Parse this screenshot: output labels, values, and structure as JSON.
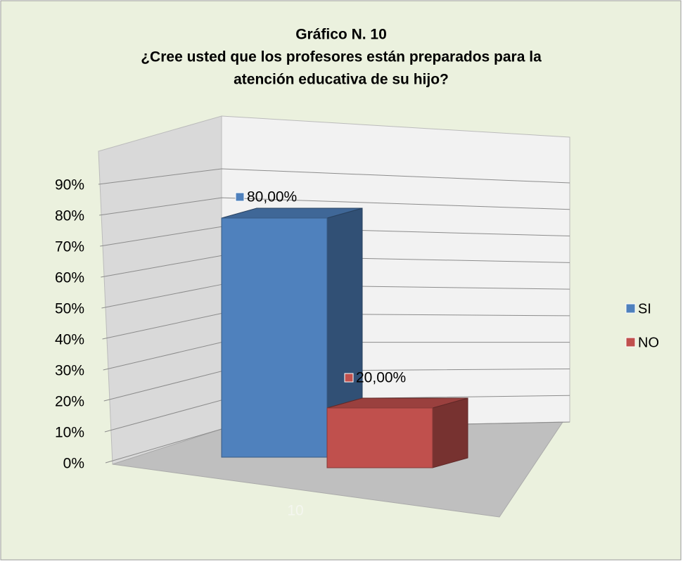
{
  "chart_data": {
    "type": "bar3d",
    "title": [
      "Gráfico N. 10",
      "¿Cree usted que los profesores están preparados para la",
      "atención educativa de su hijo?"
    ],
    "categories": [
      "10"
    ],
    "series": [
      {
        "name": "SI",
        "color": "#4f81bd",
        "values": [
          80
        ],
        "value_labels": [
          "80,00%"
        ]
      },
      {
        "name": "NO",
        "color": "#c0504d",
        "values": [
          20
        ],
        "value_labels": [
          "20,00%"
        ]
      }
    ],
    "ylim": [
      0,
      90
    ],
    "yticks": [
      {
        "value": 0,
        "label": "0%"
      },
      {
        "value": 10,
        "label": "10%"
      },
      {
        "value": 20,
        "label": "20%"
      },
      {
        "value": 30,
        "label": "30%"
      },
      {
        "value": 40,
        "label": "40%"
      },
      {
        "value": 50,
        "label": "50%"
      },
      {
        "value": 60,
        "label": "60%"
      },
      {
        "value": 70,
        "label": "70%"
      },
      {
        "value": 80,
        "label": "80%"
      },
      {
        "value": 90,
        "label": "90%"
      }
    ],
    "grid": true,
    "legend": "right"
  }
}
